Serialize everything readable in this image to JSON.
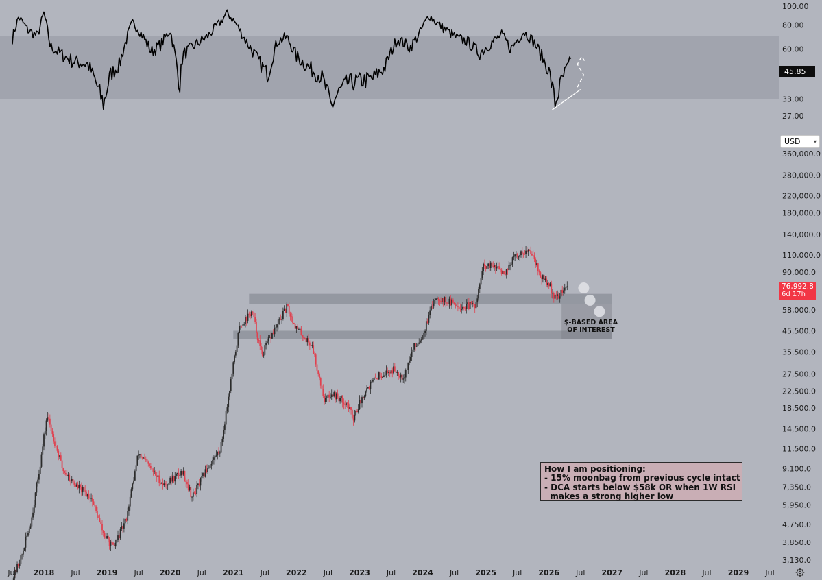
{
  "colors": {
    "background": "#b2b5be",
    "up_candle": "#2b2b2b",
    "down_candle": "#e0414f",
    "rsi_line": "#000000",
    "zone_fill": "#7c7f88",
    "note_fill": "#c9aeb5",
    "price_badge": "#f23645",
    "rsi_badge": "#0d0d0d"
  },
  "header": {
    "currency": "USD"
  },
  "rsi": {
    "current_value": "45.85",
    "band": [
      33,
      70
    ]
  },
  "price": {
    "current_value": "76,992.8",
    "countdown": "6d 17h"
  },
  "annotations": {
    "zone_label": "$-BASED AREA\nOF INTEREST",
    "note": "How I am positioning:\n- 15% moonbag from previous cycle intact\n- DCA starts below $58k OR when 1W RSI\n  makes a strong higher low"
  },
  "icons": {
    "settings": "gear-icon",
    "currency_dropdown": "chevron-down-icon"
  },
  "chart_data": [
    {
      "type": "line",
      "panel": "RSI",
      "yscale": "log",
      "ylim": [
        24,
        105
      ],
      "yticks": [
        "100.00",
        "80.00",
        "60.00",
        "45.85",
        "33.00",
        "27.00"
      ],
      "band": [
        33,
        70
      ],
      "series": [
        {
          "x": [
            2017.5,
            2017.6,
            2017.75,
            2017.9,
            2018.0,
            2018.1,
            2018.25,
            2018.45,
            2018.7,
            2018.9,
            2018.95,
            2019.05,
            2019.2,
            2019.4,
            2019.5,
            2019.7,
            2019.85,
            2020.0,
            2020.15,
            2020.2,
            2020.4,
            2020.6,
            2020.8,
            2020.9,
            2021.0,
            2021.2,
            2021.4,
            2021.55,
            2021.7,
            2021.85,
            2022.0,
            2022.2,
            2022.4,
            2022.55,
            2022.65,
            2022.8,
            2023.0,
            2023.2,
            2023.4,
            2023.6,
            2023.8,
            2023.95,
            2024.1,
            2024.2,
            2024.35,
            2024.55,
            2024.7,
            2024.9,
            2025.05,
            2025.25,
            2025.4,
            2025.6,
            2025.75,
            2025.9,
            2026.0,
            2026.1,
            2026.2,
            2026.35
          ],
          "values": [
            68,
            88,
            75,
            70,
            92,
            62,
            57,
            52,
            50,
            34,
            31,
            44,
            50,
            82,
            76,
            58,
            63,
            75,
            38,
            56,
            63,
            70,
            83,
            92,
            85,
            66,
            52,
            44,
            66,
            69,
            55,
            48,
            43,
            30,
            35,
            40,
            41,
            42,
            48,
            68,
            61,
            72,
            90,
            83,
            76,
            68,
            66,
            57,
            63,
            71,
            60,
            74,
            66,
            54,
            46,
            31,
            41,
            52
          ]
        },
        {
          "name": "",
          "x": [
            2026.45,
            2026.55,
            2026.45,
            2026.52,
            2026.58
          ],
          "values": [
            38,
            44,
            50,
            55,
            51
          ]
        }
      ],
      "annotations": [
        {
          "from": [
            2026.05,
            29
          ],
          "to": [
            2026.5,
            37
          ]
        }
      ]
    },
    {
      "type": "candlestick",
      "panel": "Price (weekly)",
      "yscale": "log",
      "ylim": [
        3000,
        380000
      ],
      "yticks": [
        "360,000.0",
        "280,000.0",
        "220,000.0",
        "180,000.0",
        "140,000.0",
        "110,000.0",
        "90,000.0",
        "76,992.8",
        "58,000.0",
        "45,500.0",
        "35,500.0",
        "27,500.0",
        "22,500.0",
        "18,500.0",
        "14,500.0",
        "11,500.0",
        "9,100.0",
        "7,350.0",
        "5,950.0",
        "4,750.0",
        "3,850.0",
        "3,130.0"
      ],
      "x_ticks": [
        "Jul",
        "2018",
        "Jul",
        "2019",
        "Jul",
        "2020",
        "Jul",
        "2021",
        "Jul",
        "2022",
        "Jul",
        "2023",
        "Jul",
        "2024",
        "Jul",
        "2025",
        "Jul",
        "2026",
        "Jul",
        "2027",
        "Jul",
        "2028",
        "Jul",
        "2029",
        "Jul"
      ],
      "anchors": {
        "x": [
          2017.5,
          2017.65,
          2017.8,
          2017.95,
          2018.05,
          2018.3,
          2018.5,
          2018.75,
          2018.95,
          2019.1,
          2019.3,
          2019.5,
          2019.7,
          2019.9,
          2020.2,
          2020.35,
          2020.6,
          2020.8,
          2020.95,
          2021.1,
          2021.3,
          2021.45,
          2021.55,
          2021.85,
          2022.0,
          2022.25,
          2022.45,
          2022.55,
          2022.8,
          2022.9,
          2023.1,
          2023.3,
          2023.55,
          2023.7,
          2023.85,
          2024.0,
          2024.2,
          2024.45,
          2024.65,
          2024.85,
          2024.95,
          2025.1,
          2025.3,
          2025.45,
          2025.6,
          2025.75,
          2025.85,
          2026.0,
          2026.1,
          2026.3
        ],
        "close": [
          2500,
          3300,
          5000,
          10000,
          17000,
          9000,
          7500,
          6500,
          4200,
          3600,
          5000,
          11000,
          9000,
          7500,
          8800,
          6500,
          9300,
          11500,
          24000,
          48000,
          57000,
          34000,
          40000,
          60000,
          47000,
          38000,
          20000,
          22000,
          19500,
          16500,
          23000,
          27000,
          29000,
          26500,
          37000,
          43000,
          68000,
          63000,
          60000,
          62000,
          95000,
          97000,
          90000,
          107000,
          115000,
          113000,
          87000,
          78000,
          66000,
          77000
        ]
      },
      "zones": [
        {
          "from": "2021.25",
          "to": "2027.0",
          "low": 62000,
          "high": 70000
        },
        {
          "from": "2021.0",
          "to": "2027.0",
          "low": 41500,
          "high": 45500
        }
      ],
      "projection_points": [
        {
          "x": 2026.55,
          "y": 75000
        },
        {
          "x": 2026.65,
          "y": 65000
        },
        {
          "x": 2026.8,
          "y": 57000
        }
      ]
    }
  ]
}
